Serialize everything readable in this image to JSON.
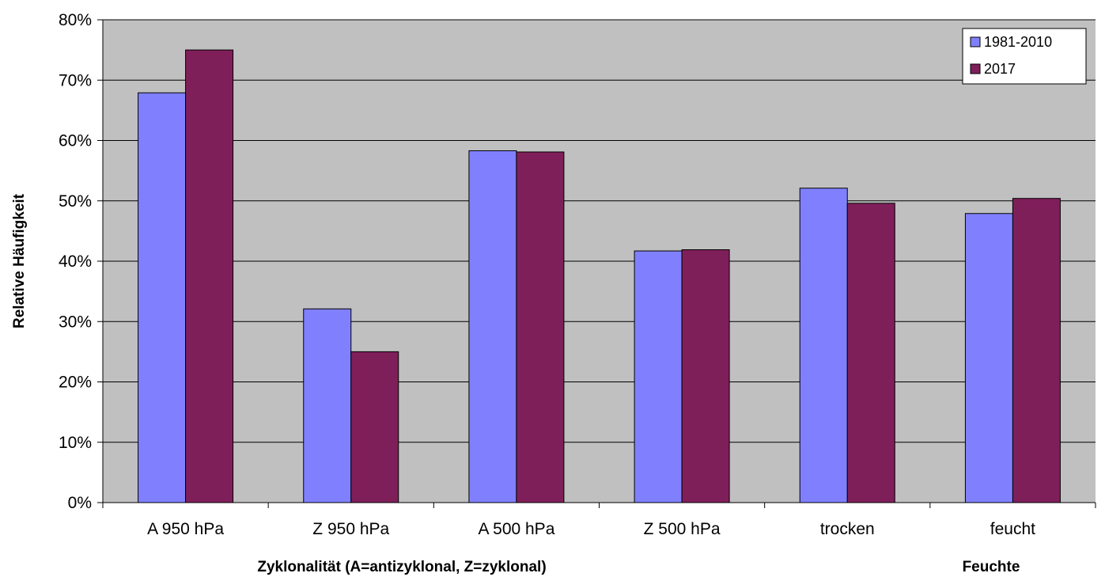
{
  "chart_data": {
    "type": "bar",
    "title": "",
    "ylabel": "Relative Häufigkeit",
    "xlabel_groups": [
      {
        "label": "Zyklonalität (A=antizyklonal, Z=zyklonal)"
      },
      {
        "label": "Feuchte"
      }
    ],
    "categories": [
      "A 950 hPa",
      "Z 950 hPa",
      "A 500 hPa",
      "Z 500 hPa",
      "trocken",
      "feucht"
    ],
    "series": [
      {
        "name": "1981-2010",
        "color": "#8080ff",
        "values": [
          67.9,
          32.1,
          58.3,
          41.7,
          52.1,
          47.9
        ]
      },
      {
        "name": "2017",
        "color": "#7f1f5a",
        "values": [
          75.0,
          25.0,
          58.1,
          41.9,
          49.6,
          50.4
        ]
      }
    ],
    "ylim": [
      0,
      80
    ],
    "y_ticks": [
      "0%",
      "10%",
      "20%",
      "30%",
      "40%",
      "50%",
      "60%",
      "70%",
      "80%"
    ],
    "grid": true,
    "legend_position": "top-right",
    "plot_background": "#c0c0c0"
  }
}
